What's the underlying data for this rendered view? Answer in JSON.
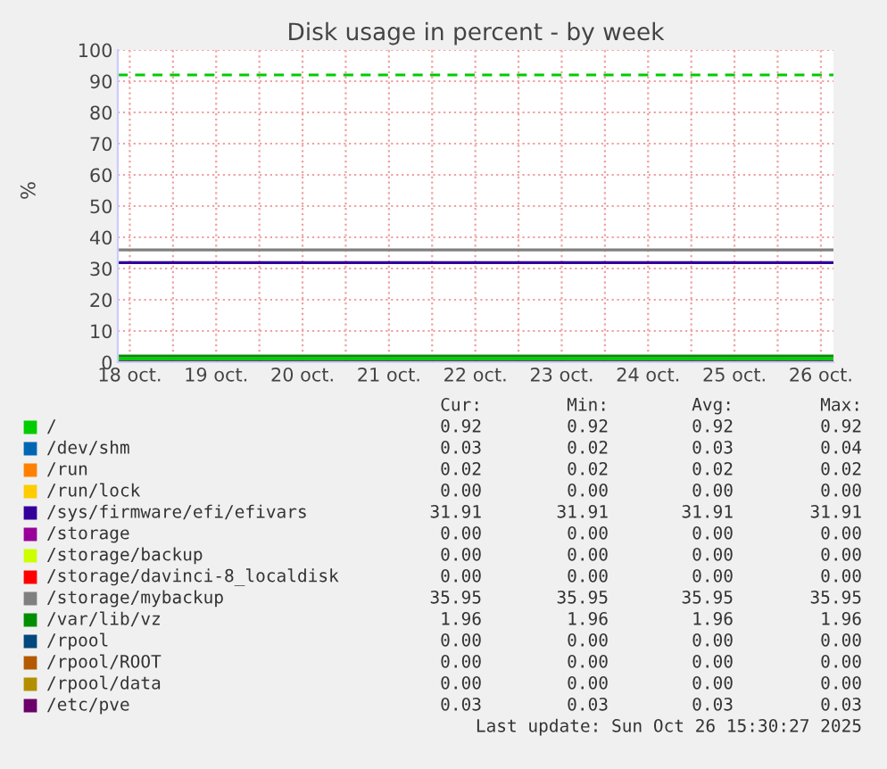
{
  "chart_data": {
    "type": "line",
    "title": "Disk usage in percent - by week",
    "ylabel": "%",
    "x": [
      "2025-10-18T08:40",
      "2025-10-26T15:30"
    ],
    "xlim": [
      "2025-10-18T08:40",
      "2025-10-26T15:30"
    ],
    "xticks": [
      {
        "value": "2025-10-18T12:00",
        "label": "18 oct."
      },
      {
        "value": "2025-10-19T12:00",
        "label": "19 oct."
      },
      {
        "value": "2025-10-20T12:00",
        "label": "20 oct."
      },
      {
        "value": "2025-10-21T12:00",
        "label": "21 oct."
      },
      {
        "value": "2025-10-22T12:00",
        "label": "22 oct."
      },
      {
        "value": "2025-10-23T12:00",
        "label": "23 oct."
      },
      {
        "value": "2025-10-24T12:00",
        "label": "24 oct."
      },
      {
        "value": "2025-10-25T12:00",
        "label": "25 oct."
      },
      {
        "value": "2025-10-26T12:00",
        "label": "26 oct."
      },
      {
        "value": "2025-10-19",
        "label": null
      },
      {
        "value": "2025-10-20",
        "label": null
      },
      {
        "value": "2025-10-21",
        "label": null
      },
      {
        "value": "2025-10-22",
        "label": null
      },
      {
        "value": "2025-10-23",
        "label": null
      },
      {
        "value": "2025-10-24",
        "label": null
      },
      {
        "value": "2025-10-25",
        "label": null
      },
      {
        "value": "2025-10-26",
        "label": null
      }
    ],
    "ylim": [
      0,
      100
    ],
    "yticks": [
      0,
      10,
      20,
      30,
      40,
      50,
      60,
      70,
      80,
      90,
      100
    ],
    "grid": true,
    "legend": "bottom",
    "marker": "none",
    "line_style": "solid",
    "ref_lines": [
      {
        "axis": "y",
        "value": 92,
        "color": "#00cc00",
        "line_style": "dashed"
      }
    ],
    "series": [
      {
        "name": "/",
        "color": "#00cc00",
        "values": [
          0.92,
          0.92
        ]
      },
      {
        "name": "/dev/shm",
        "color": "#0066b3",
        "values": [
          null,
          null
        ]
      },
      {
        "name": "/run",
        "color": "#ff8000",
        "values": [
          null,
          null
        ]
      },
      {
        "name": "/run/lock",
        "color": "#ffcc00",
        "values": [
          null,
          null
        ]
      },
      {
        "name": "/sys/firmware/efi/efivars",
        "color": "#330099",
        "values": [
          31.91,
          31.91
        ]
      },
      {
        "name": "/storage",
        "color": "#990099",
        "values": [
          null,
          null
        ]
      },
      {
        "name": "/storage/backup",
        "color": "#ccff00",
        "values": [
          null,
          null
        ]
      },
      {
        "name": "/storage/davinci-8_localdisk",
        "color": "#ff0000",
        "values": [
          null,
          null
        ]
      },
      {
        "name": "/storage/mybackup",
        "color": "#808080",
        "values": [
          35.95,
          35.95
        ]
      },
      {
        "name": "/var/lib/vz",
        "color": "#008f00",
        "values": [
          1.96,
          1.96
        ]
      },
      {
        "name": "/rpool",
        "color": "#00487d",
        "values": [
          null,
          null
        ]
      },
      {
        "name": "/rpool/ROOT",
        "color": "#b35a00",
        "values": [
          null,
          null
        ]
      },
      {
        "name": "/rpool/data",
        "color": "#b38f00",
        "values": [
          null,
          null
        ]
      },
      {
        "name": "/etc/pve",
        "color": "#6b006b",
        "values": [
          0.03,
          0.03
        ]
      }
    ],
    "annotations": [
      "Cur:",
      "Min:",
      "Avg:",
      "Max:",
      "0.92",
      "0.92",
      "0.92",
      "0.92",
      "0.03",
      "0.02",
      "0.03",
      "0.04",
      "0.02",
      "0.02",
      "0.02",
      "0.02",
      "0.00",
      "0.00",
      "0.00",
      "0.00",
      "31.91",
      "31.91",
      "31.91",
      "31.91",
      "0.00",
      "0.00",
      "0.00",
      "0.00",
      "0.00",
      "0.00",
      "0.00",
      "0.00",
      "0.00",
      "0.00",
      "0.00",
      "0.00",
      "35.95",
      "35.95",
      "35.95",
      "35.95",
      "1.96",
      "1.96",
      "1.96",
      "1.96",
      "0.00",
      "0.00",
      "0.00",
      "0.00",
      "0.00",
      "0.00",
      "0.00",
      "0.00",
      "0.00",
      "0.00",
      "0.00",
      "0.00",
      "0.03",
      "0.03",
      "0.03",
      "0.03",
      "Last update: Sun Oct 26 15:30:27 2025"
    ]
  }
}
